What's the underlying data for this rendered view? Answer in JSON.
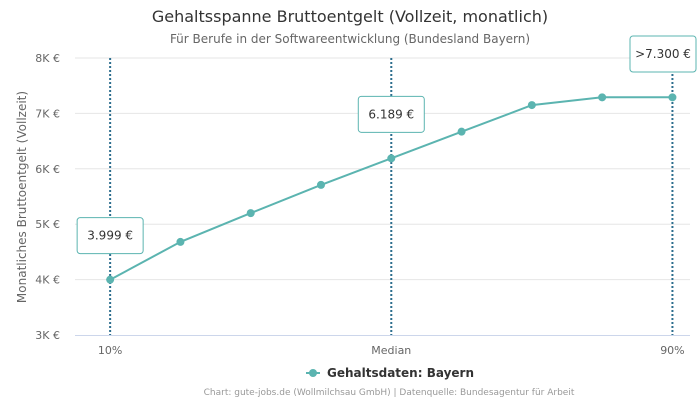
{
  "colors": {
    "series": "#5BB4B0",
    "marker_line": "#2D6E8E",
    "grid": "#E6E6E6",
    "axis": "#CCD6EB"
  },
  "chart_data": {
    "type": "line",
    "title": "Gehaltsspanne Bruttoentgelt (Vollzeit, monatlich)",
    "subtitle": "Für Berufe in der Softwareentwicklung (Bundesland Bayern)",
    "xlabel": "",
    "ylabel": "Monatliches Bruttoentgelt (Vollzeit)",
    "ylim": [
      3000,
      8000
    ],
    "yticks": [
      {
        "value": 3000,
        "label": "3K €"
      },
      {
        "value": 4000,
        "label": "4K €"
      },
      {
        "value": 5000,
        "label": "5K €"
      },
      {
        "value": 6000,
        "label": "6K €"
      },
      {
        "value": 7000,
        "label": "7K €"
      },
      {
        "value": 8000,
        "label": "8K €"
      }
    ],
    "x": [
      10,
      20,
      30,
      40,
      50,
      60,
      70,
      80,
      90
    ],
    "xlim": [
      5,
      92.5
    ],
    "xticks": [
      {
        "value": 10,
        "label": "10%"
      },
      {
        "value": 50,
        "label": "Median"
      },
      {
        "value": 90,
        "label": "90%"
      }
    ],
    "grid": true,
    "legend_position": "bottom-center",
    "series": [
      {
        "name": "Gehaltsdaten: Bayern",
        "values": [
          3999,
          4680,
          5200,
          5710,
          6189,
          6670,
          7150,
          7290,
          7290
        ]
      }
    ],
    "reference_lines": [
      {
        "x": 10,
        "label": "3.999 €",
        "value": 3999
      },
      {
        "x": 50,
        "label": "6.189 €",
        "value": 6189
      },
      {
        "x": 90,
        "label": ">7.300 €",
        "value": 7300
      }
    ],
    "credits": "Chart: gute-jobs.de (Wollmilchsau GmbH) | Datenquelle: Bundesagentur für Arbeit"
  }
}
